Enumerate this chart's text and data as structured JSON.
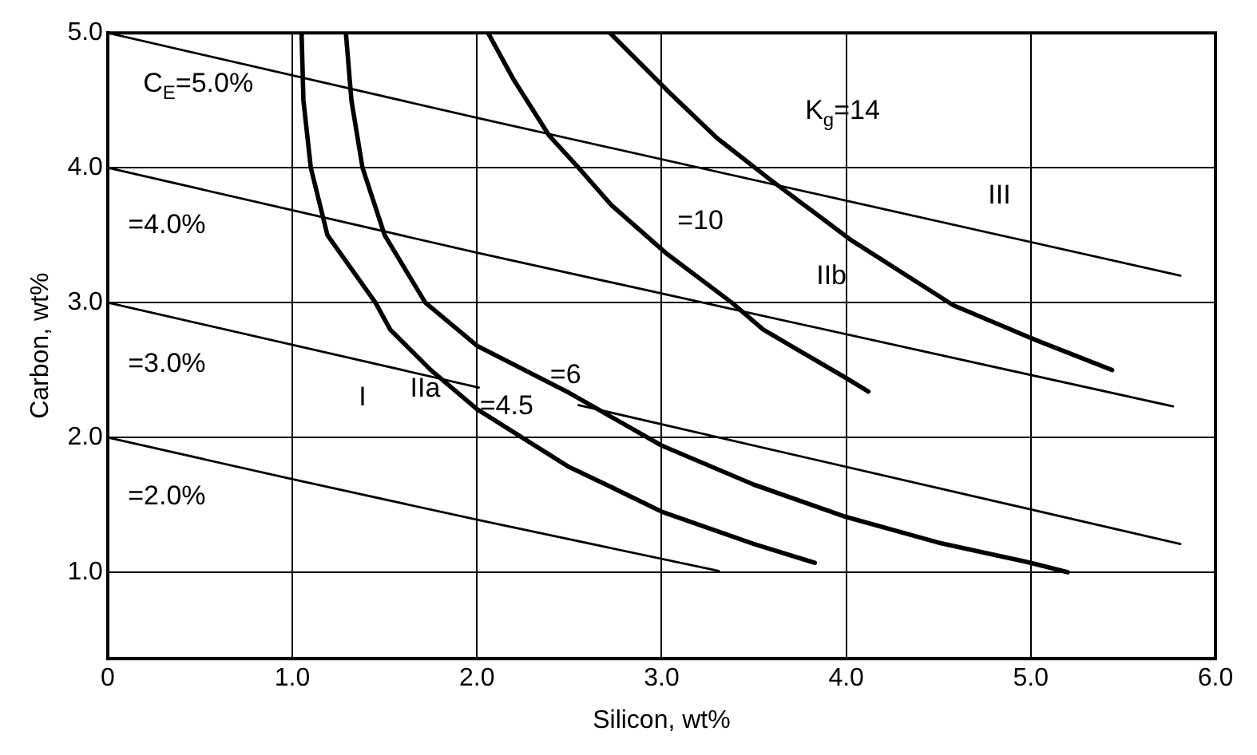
{
  "chart_data": {
    "type": "line",
    "xlabel": "Silicon, wt%",
    "ylabel": "Carbon, wt%",
    "xlim": [
      0,
      6
    ],
    "ylim": [
      0.36,
      5
    ],
    "xticks": [
      0,
      {
        "value": 1,
        "label": "1.0"
      },
      {
        "value": 2,
        "label": "2.0"
      },
      {
        "value": 3,
        "label": "3.0"
      },
      {
        "value": 4,
        "label": "4.0"
      },
      {
        "value": 5,
        "label": "5.0"
      },
      {
        "value": 6,
        "label": "6.0"
      }
    ],
    "yticks": [
      {
        "value": 1,
        "label": "1.0"
      },
      {
        "value": 2,
        "label": "2.0"
      },
      {
        "value": 3,
        "label": "3.0"
      },
      {
        "value": 4,
        "label": "4.0"
      },
      {
        "value": 5,
        "label": "5.0"
      }
    ],
    "grid": true,
    "line_style": "solid",
    "series": [
      {
        "name": "C$_{E}$=5.0%",
        "color": "#000000",
        "x": [
          0,
          2,
          5.81
        ],
        "values": [
          5,
          4.37,
          3.2
        ]
      },
      {
        "name": "=4.0%",
        "color": "#000000",
        "x": [
          0,
          2,
          5.77
        ],
        "values": [
          4,
          3.37,
          2.23
        ]
      },
      {
        "name": "=3.0%",
        "color": "#000000",
        "x": [
          0,
          2.01,
          2.3,
          2.55,
          5.81
        ],
        "values": [
          3,
          2.37,
          null,
          2.24,
          1.21
        ]
      },
      {
        "name": "=2.0%",
        "color": "#000000",
        "x": [
          0,
          1,
          2,
          3.31
        ],
        "values": [
          2,
          1.69,
          1.39,
          1.01
        ]
      },
      {
        "name": "=4.5",
        "color": "#000000",
        "x": [
          1.05,
          1.06,
          1.1,
          1.19,
          1.45,
          1.53,
          1.75,
          2,
          2.5,
          2.73,
          3,
          3.5,
          3.83
        ],
        "values": [
          5,
          4.5,
          4,
          3.5,
          3,
          2.8,
          2.5,
          2.21,
          1.78,
          1.63,
          1.45,
          1.21,
          1.07
        ]
      },
      {
        "name": "=6",
        "color": "#000000",
        "x": [
          1.29,
          1.32,
          1.38,
          1.5,
          1.72,
          2,
          2.5,
          3,
          3.5,
          4,
          4.5,
          5,
          5.2
        ],
        "values": [
          5,
          4.5,
          4,
          3.5,
          3,
          2.68,
          2.33,
          1.94,
          1.65,
          1.41,
          1.22,
          1.07,
          1
        ]
      },
      {
        "name": "=10",
        "color": "#000000",
        "x": [
          2.06,
          2.2,
          2.39,
          2.55,
          2.73,
          3.03,
          3.38,
          3.55,
          4,
          4.12
        ],
        "values": [
          5,
          4.65,
          4.24,
          4,
          3.72,
          3.36,
          3,
          2.8,
          2.44,
          2.34
        ]
      },
      {
        "name": "K$_{g}$=14",
        "color": "#000000",
        "x": [
          2.72,
          3.04,
          3.3,
          3.59,
          4.03,
          4.58,
          5.03,
          5.44
        ],
        "values": [
          5,
          4.56,
          4.22,
          3.91,
          3.46,
          2.98,
          2.72,
          2.5
        ]
      }
    ],
    "annotations": [
      "I",
      "IIa",
      "IIb",
      "III"
    ]
  }
}
